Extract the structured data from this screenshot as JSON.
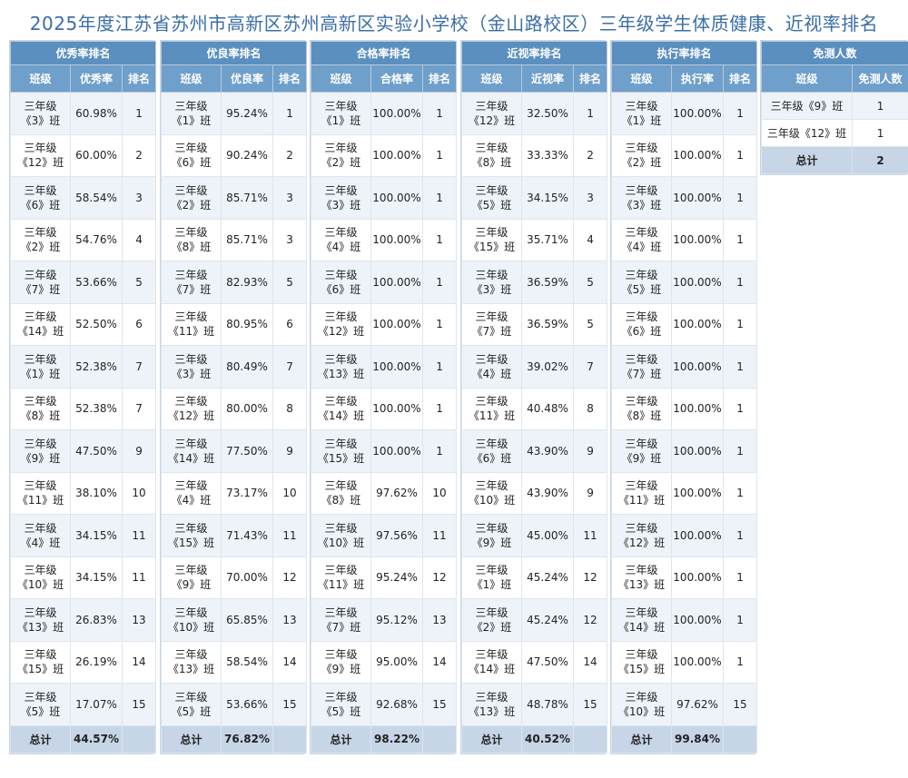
{
  "title": "2025年度江苏省苏州市高新区苏州高新区实验小学校（金山路校区）三年级学生体质健康、近视率排名",
  "total_label": "总计",
  "panels": [
    {
      "header": "优秀率排名",
      "cols": [
        "班级",
        "优秀率",
        "排名"
      ],
      "rows": [
        [
          "三年级\n《3》班",
          "60.98%",
          "1"
        ],
        [
          "三年级\n《12》班",
          "60.00%",
          "2"
        ],
        [
          "三年级\n《6》班",
          "58.54%",
          "3"
        ],
        [
          "三年级\n《2》班",
          "54.76%",
          "4"
        ],
        [
          "三年级\n《7》班",
          "53.66%",
          "5"
        ],
        [
          "三年级\n《14》班",
          "52.50%",
          "6"
        ],
        [
          "三年级\n《1》班",
          "52.38%",
          "7"
        ],
        [
          "三年级\n《8》班",
          "52.38%",
          "7"
        ],
        [
          "三年级\n《9》班",
          "47.50%",
          "9"
        ],
        [
          "三年级\n《11》班",
          "38.10%",
          "10"
        ],
        [
          "三年级\n《4》班",
          "34.15%",
          "11"
        ],
        [
          "三年级\n《10》班",
          "34.15%",
          "11"
        ],
        [
          "三年级\n《13》班",
          "26.83%",
          "13"
        ],
        [
          "三年级\n《15》班",
          "26.19%",
          "14"
        ],
        [
          "三年级\n《5》班",
          "17.07%",
          "15"
        ]
      ],
      "total": "44.57%"
    },
    {
      "header": "优良率排名",
      "cols": [
        "班级",
        "优良率",
        "排名"
      ],
      "rows": [
        [
          "三年级\n《1》班",
          "95.24%",
          "1"
        ],
        [
          "三年级\n《6》班",
          "90.24%",
          "2"
        ],
        [
          "三年级\n《2》班",
          "85.71%",
          "3"
        ],
        [
          "三年级\n《8》班",
          "85.71%",
          "3"
        ],
        [
          "三年级\n《7》班",
          "82.93%",
          "5"
        ],
        [
          "三年级\n《11》班",
          "80.95%",
          "6"
        ],
        [
          "三年级\n《3》班",
          "80.49%",
          "7"
        ],
        [
          "三年级\n《12》班",
          "80.00%",
          "8"
        ],
        [
          "三年级\n《14》班",
          "77.50%",
          "9"
        ],
        [
          "三年级\n《4》班",
          "73.17%",
          "10"
        ],
        [
          "三年级\n《15》班",
          "71.43%",
          "11"
        ],
        [
          "三年级\n《9》班",
          "70.00%",
          "12"
        ],
        [
          "三年级\n《10》班",
          "65.85%",
          "13"
        ],
        [
          "三年级\n《13》班",
          "58.54%",
          "14"
        ],
        [
          "三年级\n《5》班",
          "53.66%",
          "15"
        ]
      ],
      "total": "76.82%"
    },
    {
      "header": "合格率排名",
      "cols": [
        "班级",
        "合格率",
        "排名"
      ],
      "rows": [
        [
          "三年级\n《1》班",
          "100.00%",
          "1"
        ],
        [
          "三年级\n《2》班",
          "100.00%",
          "1"
        ],
        [
          "三年级\n《3》班",
          "100.00%",
          "1"
        ],
        [
          "三年级\n《4》班",
          "100.00%",
          "1"
        ],
        [
          "三年级\n《6》班",
          "100.00%",
          "1"
        ],
        [
          "三年级\n《12》班",
          "100.00%",
          "1"
        ],
        [
          "三年级\n《13》班",
          "100.00%",
          "1"
        ],
        [
          "三年级\n《14》班",
          "100.00%",
          "1"
        ],
        [
          "三年级\n《15》班",
          "100.00%",
          "1"
        ],
        [
          "三年级\n《8》班",
          "97.62%",
          "10"
        ],
        [
          "三年级\n《10》班",
          "97.56%",
          "11"
        ],
        [
          "三年级\n《11》班",
          "95.24%",
          "12"
        ],
        [
          "三年级\n《7》班",
          "95.12%",
          "13"
        ],
        [
          "三年级\n《9》班",
          "95.00%",
          "14"
        ],
        [
          "三年级\n《5》班",
          "92.68%",
          "15"
        ]
      ],
      "total": "98.22%"
    },
    {
      "header": "近视率排名",
      "cols": [
        "班级",
        "近视率",
        "排名"
      ],
      "rows": [
        [
          "三年级\n《12》班",
          "32.50%",
          "1"
        ],
        [
          "三年级\n《8》班",
          "33.33%",
          "2"
        ],
        [
          "三年级\n《5》班",
          "34.15%",
          "3"
        ],
        [
          "三年级\n《15》班",
          "35.71%",
          "4"
        ],
        [
          "三年级\n《3》班",
          "36.59%",
          "5"
        ],
        [
          "三年级\n《7》班",
          "36.59%",
          "5"
        ],
        [
          "三年级\n《4》班",
          "39.02%",
          "7"
        ],
        [
          "三年级\n《11》班",
          "40.48%",
          "8"
        ],
        [
          "三年级\n《6》班",
          "43.90%",
          "9"
        ],
        [
          "三年级\n《10》班",
          "43.90%",
          "9"
        ],
        [
          "三年级\n《9》班",
          "45.00%",
          "11"
        ],
        [
          "三年级\n《1》班",
          "45.24%",
          "12"
        ],
        [
          "三年级\n《2》班",
          "45.24%",
          "12"
        ],
        [
          "三年级\n《14》班",
          "47.50%",
          "14"
        ],
        [
          "三年级\n《13》班",
          "48.78%",
          "15"
        ]
      ],
      "total": "40.52%"
    },
    {
      "header": "执行率排名",
      "cols": [
        "班级",
        "执行率",
        "排名"
      ],
      "rows": [
        [
          "三年级\n《1》班",
          "100.00%",
          "1"
        ],
        [
          "三年级\n《2》班",
          "100.00%",
          "1"
        ],
        [
          "三年级\n《3》班",
          "100.00%",
          "1"
        ],
        [
          "三年级\n《4》班",
          "100.00%",
          "1"
        ],
        [
          "三年级\n《5》班",
          "100.00%",
          "1"
        ],
        [
          "三年级\n《6》班",
          "100.00%",
          "1"
        ],
        [
          "三年级\n《7》班",
          "100.00%",
          "1"
        ],
        [
          "三年级\n《8》班",
          "100.00%",
          "1"
        ],
        [
          "三年级\n《9》班",
          "100.00%",
          "1"
        ],
        [
          "三年级\n《11》班",
          "100.00%",
          "1"
        ],
        [
          "三年级\n《12》班",
          "100.00%",
          "1"
        ],
        [
          "三年级\n《13》班",
          "100.00%",
          "1"
        ],
        [
          "三年级\n《14》班",
          "100.00%",
          "1"
        ],
        [
          "三年级\n《15》班",
          "100.00%",
          "1"
        ],
        [
          "三年级\n《10》班",
          "97.62%",
          "15"
        ]
      ],
      "total": "99.84%"
    }
  ],
  "exempt": {
    "header": "免测人数",
    "cols": [
      "班级",
      "免测人数"
    ],
    "rows": [
      [
        "三年级《9》班",
        "1"
      ],
      [
        "三年级《12》班",
        "1"
      ]
    ],
    "total": "2"
  }
}
